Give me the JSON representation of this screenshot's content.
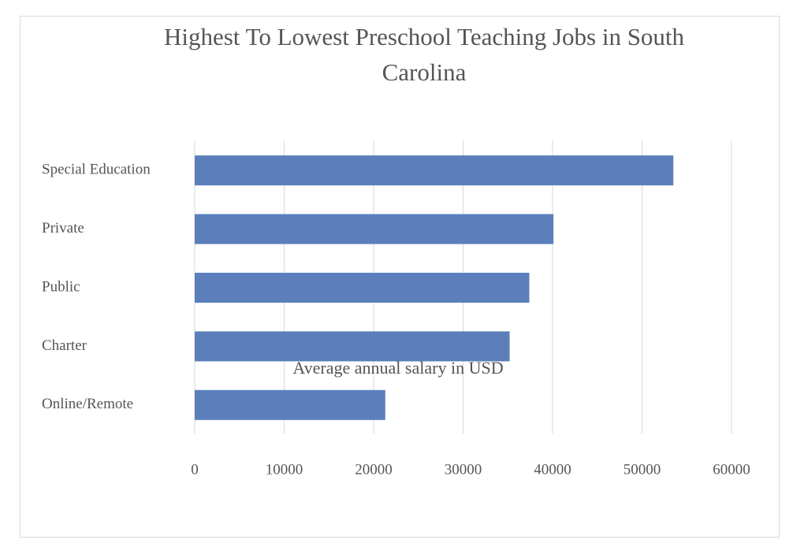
{
  "chart_data": {
    "type": "bar",
    "orientation": "horizontal",
    "title": "Highest To Lowest Preschool Teaching Jobs in South Carolina",
    "x_label": "Average annual salary in USD",
    "categories": [
      "Special Education",
      "Private",
      "Public",
      "Charter",
      "Online/Remote"
    ],
    "values": [
      53500,
      40100,
      37400,
      35200,
      21300
    ],
    "color": "#5a7fbb",
    "xlim": [
      0,
      60000
    ],
    "xticks": [
      0,
      10000,
      20000,
      30000,
      40000,
      50000,
      60000
    ],
    "grid": true
  }
}
